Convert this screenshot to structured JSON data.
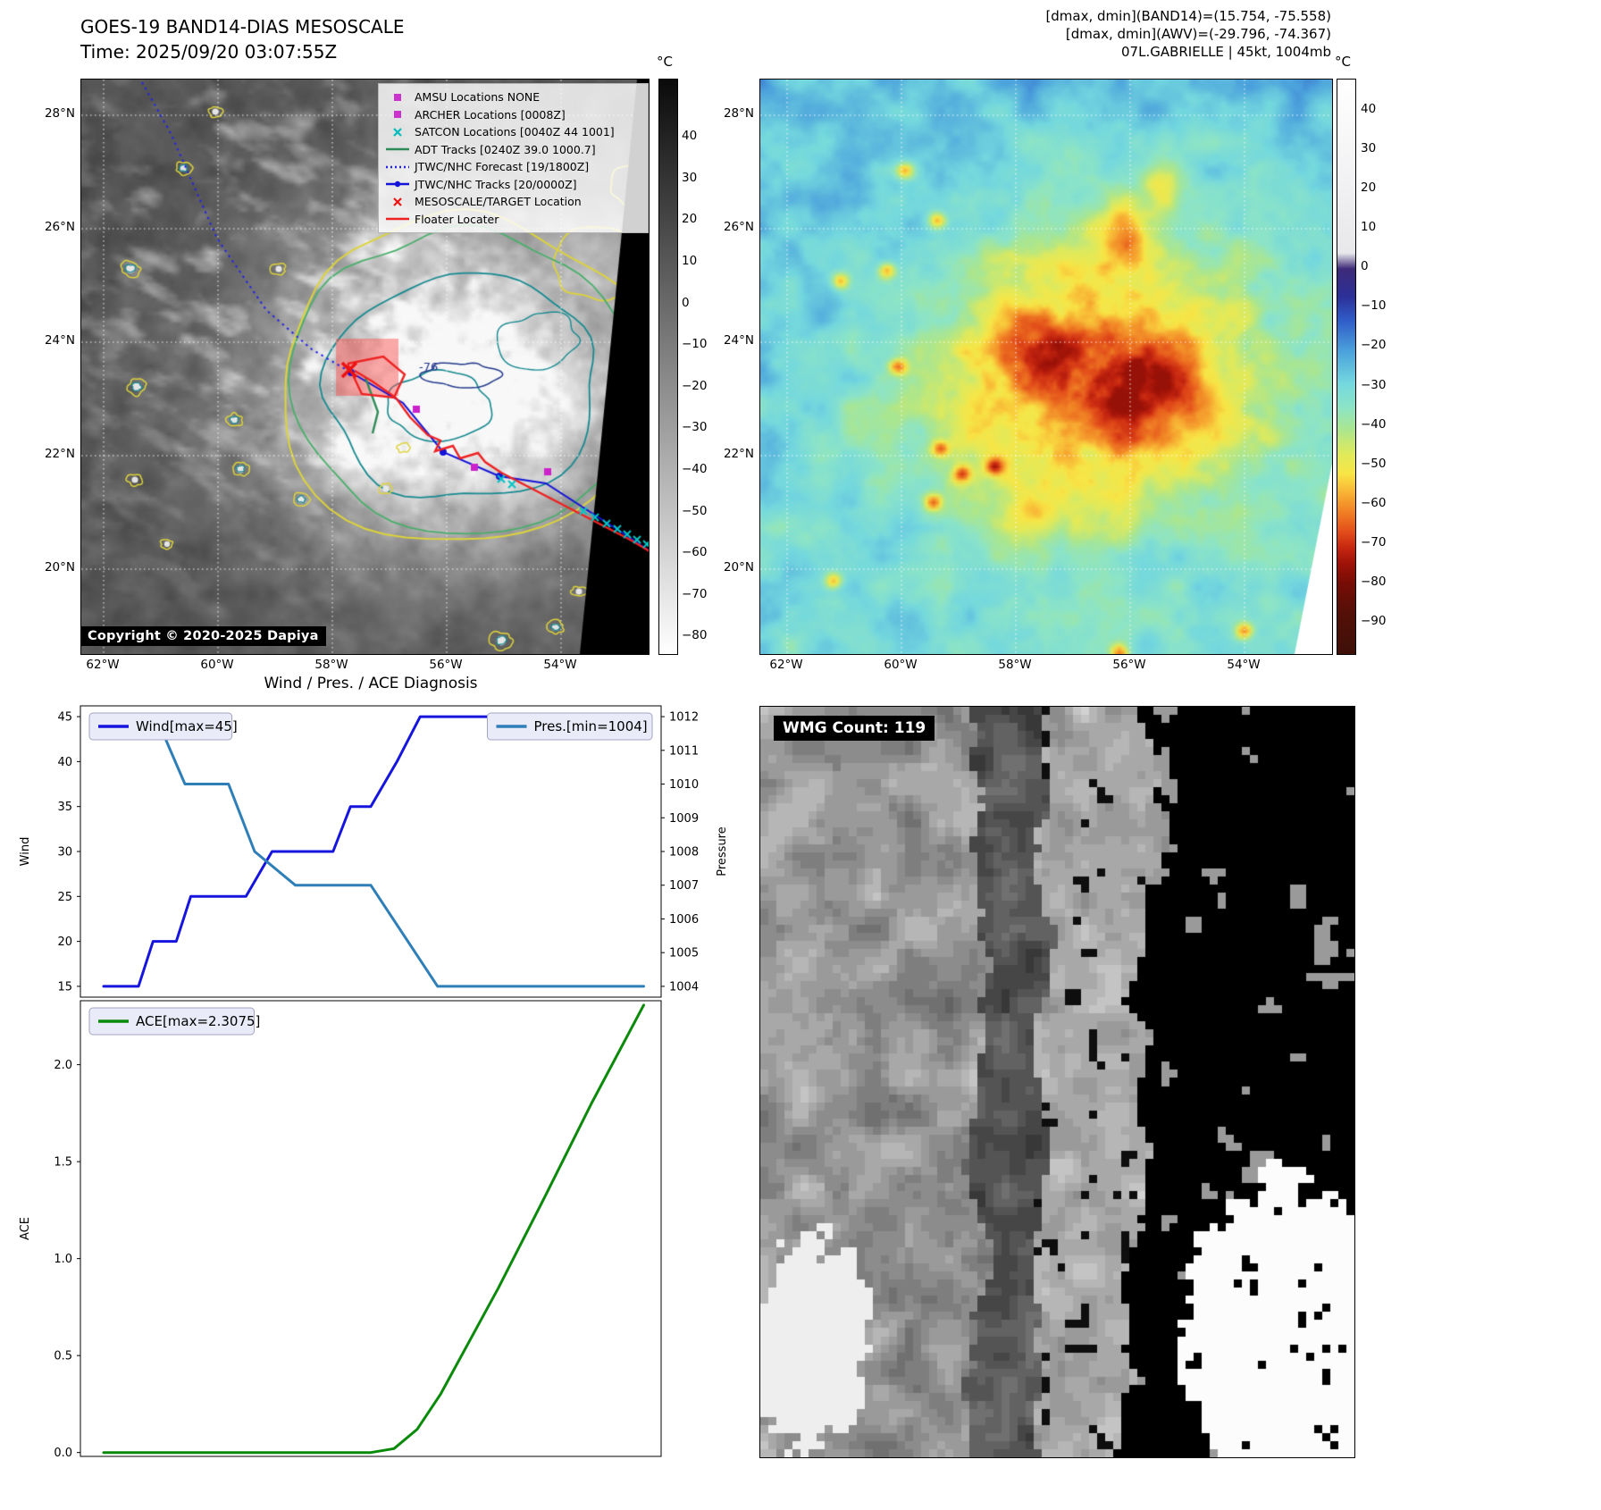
{
  "ir_panel": {
    "title": "GOES-19 BAND14-DIAS MESOSCALE",
    "time_line": "Time: 2025/09/20 03:07:55Z",
    "copyright": "Copyright © 2020-2025 Dapiya",
    "colorbar_unit": "°C",
    "colorbar_ticks": [
      40,
      30,
      20,
      10,
      0,
      -10,
      -20,
      -30,
      -40,
      -50,
      -60,
      -70,
      -80
    ],
    "lat_ticks": [
      "28°N",
      "26°N",
      "24°N",
      "22°N",
      "20°N"
    ],
    "lon_ticks": [
      "62°W",
      "60°W",
      "58°W",
      "56°W",
      "54°W"
    ],
    "contour_label": "-76",
    "legend": [
      {
        "label": "AMSU Locations NONE",
        "marker": "square",
        "color": "#cc33cc"
      },
      {
        "label": "ARCHER Locations [0008Z]",
        "marker": "square",
        "color": "#cc33cc"
      },
      {
        "label": "SATCON Locations [0040Z 44 1001]",
        "marker": "x",
        "color": "#00bcbc"
      },
      {
        "label": "ADT Tracks [0240Z 39.0 1000.7]",
        "marker": "line",
        "color": "#2e8b57"
      },
      {
        "label": "JTWC/NHC Forecast [19/1800Z]",
        "marker": "dotted",
        "color": "#2323e6"
      },
      {
        "label": "JTWC/NHC Tracks [20/0000Z]",
        "marker": "line-dot",
        "color": "#1414d8"
      },
      {
        "label": "MESOSCALE/TARGET Location",
        "marker": "x",
        "color": "#ee1111"
      },
      {
        "label": "Floater Locater",
        "marker": "line",
        "color": "#ee2222"
      }
    ]
  },
  "awv_panel": {
    "header_lines": [
      "[dmax, dmin](BAND14)=(15.754, -75.558)",
      "[dmax, dmin](AWV)=(-29.796, -74.367)",
      "07L.GABRIELLE | 45kt, 1004mb"
    ],
    "colorbar_unit": "°C",
    "colorbar_ticks": [
      40,
      30,
      20,
      10,
      0,
      -10,
      -20,
      -30,
      -40,
      -50,
      -60,
      -70,
      -80,
      -90
    ],
    "lat_ticks": [
      "28°N",
      "26°N",
      "24°N",
      "22°N",
      "20°N"
    ],
    "lon_ticks": [
      "62°W",
      "60°W",
      "58°W",
      "56°W",
      "54°W"
    ]
  },
  "diagnosis": {
    "title": "Wind / Pres. / ACE Diagnosis"
  },
  "wmg_panel": {
    "label": "WMG Count: 119"
  },
  "chart_data": [
    {
      "type": "line",
      "title": "Wind / Pres. / ACE Diagnosis",
      "xlabel": "",
      "x_range": [
        0,
        1
      ],
      "grid": false,
      "axes": {
        "left": {
          "label": "Wind",
          "ticks": [
            15,
            20,
            25,
            30,
            35,
            40,
            45
          ],
          "range": [
            13.8,
            46.2
          ],
          "fmt": "int"
        },
        "right": {
          "label": "Pressure",
          "ticks": [
            1004,
            1005,
            1006,
            1007,
            1008,
            1009,
            1010,
            1011,
            1012
          ],
          "range": [
            1003.68,
            1012.32
          ],
          "fmt": "int"
        }
      },
      "series": [
        {
          "name": "Wind[max=45]",
          "axis": "left",
          "color": "#1515dd",
          "x": [
            0.04,
            0.1,
            0.125,
            0.165,
            0.19,
            0.285,
            0.33,
            0.435,
            0.465,
            0.5,
            0.545,
            0.585,
            0.97
          ],
          "y": [
            15,
            15,
            20,
            20,
            25,
            25,
            30,
            30,
            35,
            35,
            40,
            45,
            45
          ]
        },
        {
          "name": "Pres.[min=1004]",
          "axis": "right",
          "color": "#2e7eb8",
          "x": [
            0.04,
            0.13,
            0.18,
            0.255,
            0.3,
            0.37,
            0.5,
            0.615,
            0.97
          ],
          "y": [
            1012,
            1012,
            1010,
            1010,
            1008,
            1007,
            1007,
            1004,
            1004
          ]
        }
      ],
      "legend": [
        {
          "label": "Wind[max=45]",
          "pos": "upper-left"
        },
        {
          "label": "Pres.[min=1004]",
          "pos": "upper-right"
        }
      ]
    },
    {
      "type": "line",
      "title": "",
      "xlabel": "",
      "x_range": [
        0,
        1
      ],
      "grid": false,
      "axes": {
        "left": {
          "label": "ACE",
          "ticks": [
            0.0,
            0.5,
            1.0,
            1.5,
            2.0
          ],
          "range": [
            -0.02,
            2.33
          ],
          "fmt": "1dp"
        }
      },
      "series": [
        {
          "name": "ACE[max=2.3075]",
          "axis": "left",
          "color": "#0a8a0a",
          "x": [
            0.04,
            0.5,
            0.54,
            0.58,
            0.62,
            0.66,
            0.72,
            0.8,
            0.88,
            0.97
          ],
          "y": [
            0,
            0,
            0.02,
            0.12,
            0.3,
            0.52,
            0.85,
            1.32,
            1.8,
            2.3075
          ]
        }
      ],
      "legend": [
        {
          "label": "ACE[max=2.3075]",
          "pos": "upper-left"
        }
      ]
    }
  ]
}
